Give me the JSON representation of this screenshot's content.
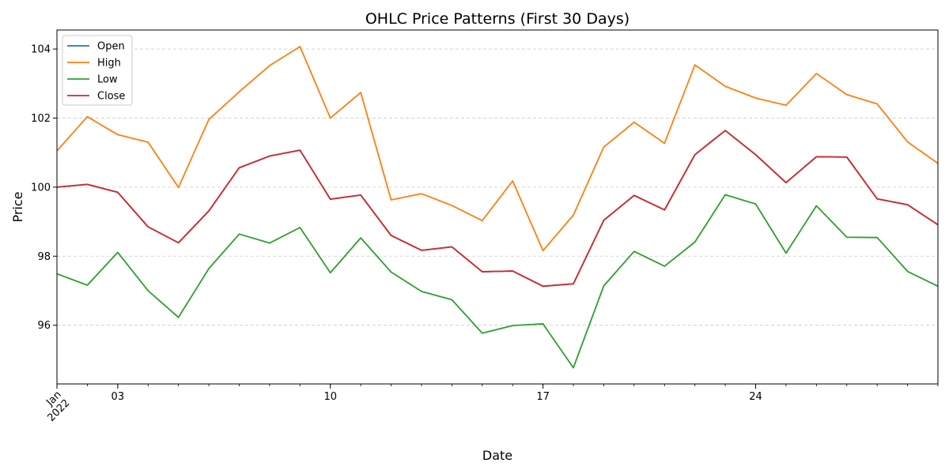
{
  "chart_data": {
    "type": "line",
    "title": "OHLC Price Patterns (First 30 Days)",
    "xlabel": "Date",
    "ylabel": "Price",
    "x": [
      "2022-01-01",
      "2022-01-02",
      "2022-01-03",
      "2022-01-04",
      "2022-01-05",
      "2022-01-06",
      "2022-01-07",
      "2022-01-08",
      "2022-01-09",
      "2022-01-10",
      "2022-01-11",
      "2022-01-12",
      "2022-01-13",
      "2022-01-14",
      "2022-01-15",
      "2022-01-16",
      "2022-01-17",
      "2022-01-18",
      "2022-01-19",
      "2022-01-20",
      "2022-01-21",
      "2022-01-22",
      "2022-01-23",
      "2022-01-24",
      "2022-01-25",
      "2022-01-26",
      "2022-01-27",
      "2022-01-28",
      "2022-01-29",
      "2022-01-30"
    ],
    "xlim": [
      "2022-01-01",
      "2022-01-30"
    ],
    "ylim": [
      94.3,
      104.55
    ],
    "x_ticks": [
      {
        "date": "2022-01-01",
        "label": "Jan\n2022"
      },
      {
        "date": "2022-01-03",
        "label": "03"
      },
      {
        "date": "2022-01-10",
        "label": "10"
      },
      {
        "date": "2022-01-17",
        "label": "17"
      },
      {
        "date": "2022-01-24",
        "label": "24"
      }
    ],
    "y_ticks": [
      96,
      98,
      100,
      102,
      104
    ],
    "grid": "horizontal dashed",
    "legend_position": "upper-left",
    "series": [
      {
        "name": "Open",
        "color": "#1f77b4",
        "values": [
          100.0,
          100.08,
          99.85,
          98.85,
          98.39,
          99.31,
          100.56,
          100.9,
          101.07,
          99.65,
          99.77,
          98.6,
          98.17,
          98.27,
          97.55,
          97.57,
          97.13,
          97.2,
          99.04,
          99.76,
          99.34,
          100.94,
          101.64,
          100.94,
          100.13,
          100.88,
          100.87,
          99.66,
          99.49,
          98.91
        ]
      },
      {
        "name": "High",
        "color": "#ff7f0e",
        "values": [
          101.05,
          102.04,
          101.52,
          101.3,
          99.99,
          101.96,
          102.76,
          103.52,
          104.07,
          102.0,
          102.74,
          99.63,
          99.81,
          99.47,
          99.03,
          100.18,
          98.16,
          99.19,
          101.16,
          101.88,
          101.27,
          103.54,
          102.92,
          102.58,
          102.37,
          103.29,
          102.68,
          102.41,
          101.31,
          100.69
        ]
      },
      {
        "name": "Low",
        "color": "#2ca02c",
        "values": [
          97.49,
          97.16,
          98.11,
          97.0,
          96.23,
          97.64,
          98.64,
          98.38,
          98.83,
          97.52,
          98.53,
          97.54,
          96.98,
          96.74,
          95.77,
          95.99,
          96.04,
          94.77,
          97.14,
          98.14,
          97.71,
          98.41,
          99.78,
          99.51,
          98.09,
          99.46,
          98.55,
          98.54,
          97.56,
          97.13
        ]
      },
      {
        "name": "Close",
        "color": "#d62728",
        "values": [
          100.0,
          100.08,
          99.85,
          98.85,
          98.39,
          99.31,
          100.56,
          100.9,
          101.07,
          99.65,
          99.77,
          98.6,
          98.17,
          98.27,
          97.55,
          97.57,
          97.13,
          97.2,
          99.04,
          99.76,
          99.34,
          100.94,
          101.64,
          100.94,
          100.13,
          100.88,
          100.87,
          99.66,
          99.49,
          98.91
        ]
      }
    ]
  }
}
